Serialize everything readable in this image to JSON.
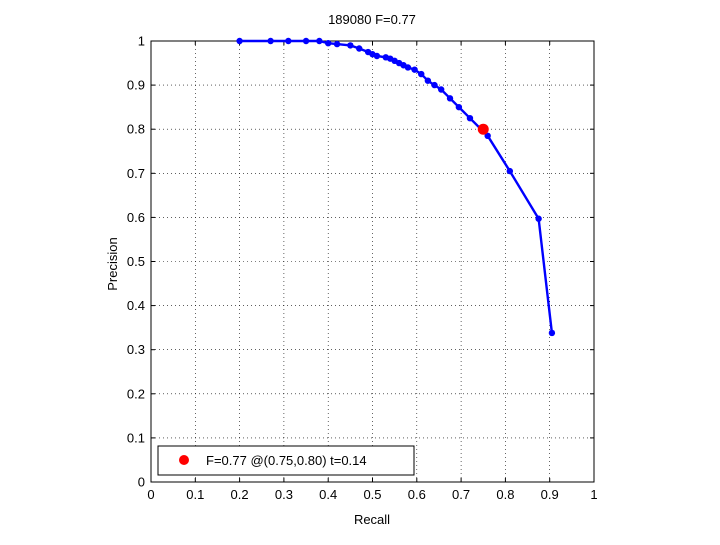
{
  "chart_data": {
    "type": "line",
    "title": "189080 F=0.77",
    "xlabel": "Recall",
    "ylabel": "Precision",
    "xlim": [
      0,
      1
    ],
    "ylim": [
      0,
      1
    ],
    "grid": true,
    "x_ticks": [
      "0",
      "0.1",
      "0.2",
      "0.3",
      "0.4",
      "0.5",
      "0.6",
      "0.7",
      "0.8",
      "0.9",
      "1"
    ],
    "y_ticks": [
      "0",
      "0.1",
      "0.2",
      "0.3",
      "0.4",
      "0.5",
      "0.6",
      "0.7",
      "0.8",
      "0.9",
      "1"
    ],
    "series": [
      {
        "color": "#0000ff",
        "points": [
          [
            0.2,
            1.0
          ],
          [
            0.27,
            1.0
          ],
          [
            0.31,
            1.0
          ],
          [
            0.35,
            1.0
          ],
          [
            0.38,
            1.0
          ],
          [
            0.4,
            0.995
          ],
          [
            0.42,
            0.993
          ],
          [
            0.45,
            0.99
          ],
          [
            0.47,
            0.983
          ],
          [
            0.49,
            0.975
          ],
          [
            0.5,
            0.97
          ],
          [
            0.51,
            0.966
          ],
          [
            0.53,
            0.963
          ],
          [
            0.54,
            0.96
          ],
          [
            0.55,
            0.955
          ],
          [
            0.56,
            0.95
          ],
          [
            0.57,
            0.945
          ],
          [
            0.58,
            0.94
          ],
          [
            0.595,
            0.935
          ],
          [
            0.61,
            0.925
          ],
          [
            0.625,
            0.91
          ],
          [
            0.64,
            0.9
          ],
          [
            0.655,
            0.89
          ],
          [
            0.675,
            0.87
          ],
          [
            0.695,
            0.85
          ],
          [
            0.72,
            0.825
          ],
          [
            0.76,
            0.785
          ],
          [
            0.81,
            0.705
          ],
          [
            0.875,
            0.597
          ],
          [
            0.905,
            0.338
          ]
        ]
      }
    ],
    "highlight": {
      "x": 0.75,
      "y": 0.8,
      "color": "#ff0000"
    },
    "legend": {
      "text": "F=0.77 @(0.75,0.80) t=0.14",
      "position": "bottom-left"
    }
  }
}
